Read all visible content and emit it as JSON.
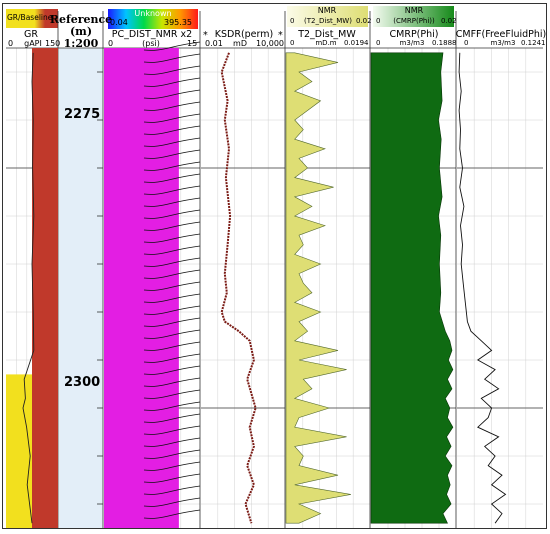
{
  "headers": {
    "gr_baseline_label": "GR/Baseline",
    "gr": {
      "title": "GR",
      "min": "0",
      "unit": "gAPI",
      "max": "150"
    },
    "reference": {
      "title": "Reference",
      "unit": "(m)",
      "scale": "1:200"
    },
    "unknown_bar": {
      "label": "Unknown",
      "min": "0.04",
      "max": "395.35"
    },
    "pc_dist": {
      "title": "PC_DIST_NMR x2",
      "min": "0",
      "unit": "(psi)",
      "max": "15"
    },
    "star_marker": "*",
    "ksdr": {
      "title": "KSDR(perm)",
      "min": "0.01",
      "unit": "mD",
      "max": "10,000"
    },
    "t2": {
      "bar_title": "NMR",
      "bar_label": "(T2_Dist_MW)",
      "bar_min": "0",
      "bar_max": "0.02",
      "title": "T2_Dist_MW",
      "min": "0",
      "unit": "mD.m",
      "max": "0.0194"
    },
    "cmrp": {
      "bar_title": "NMR",
      "bar_label": "(CMRP(Phi))",
      "bar_min": "0",
      "bar_max": "0.02",
      "title": "CMRP(Phi)",
      "min": "0",
      "unit": "m3/m3",
      "max": "0.1888"
    },
    "cmff": {
      "title": "CMFF(FreeFluidPhi)",
      "min": "0",
      "unit": "m3/m3",
      "max": "0.1241"
    }
  },
  "depth_labels": [
    "2275",
    "2300"
  ],
  "colors": {
    "gr_fill": "#c0392b",
    "baseline_fill": "#f2e01e",
    "pc_fill": "#e31ee3",
    "ksdr_line": "#7a1a14",
    "t2_fill": "#dede74",
    "cmrp_fill": "#0f6b12",
    "depth_band": "#e3eef8"
  },
  "chart_data": {
    "type": "well-log",
    "y_axis": {
      "label": "Reference (m)",
      "ylim": [
        2262.5,
        2312.5
      ],
      "ticks": [
        2275,
        2300
      ]
    },
    "tracks": [
      {
        "name": "GR",
        "unit": "gAPI",
        "xlim": [
          0,
          150
        ],
        "depth": [
          2263,
          2266,
          2270,
          2275,
          2280,
          2285,
          2290,
          2294,
          2297,
          2299,
          2300,
          2302,
          2305,
          2308,
          2312
        ],
        "values": [
          35,
          33,
          35,
          34,
          36,
          33,
          35,
          36,
          20,
          22,
          18,
          24,
          30,
          25,
          33
        ]
      },
      {
        "name": "PC_DIST_NMR x2",
        "unit": "psi",
        "xlim": [
          0,
          15
        ],
        "type": "curve-family",
        "curve_count": 40
      },
      {
        "name": "KSDR(perm)",
        "unit": "mD",
        "xlim": [
          0.01,
          10000
        ],
        "scale": "log",
        "depth": [
          2263,
          2265,
          2268,
          2270,
          2273,
          2276,
          2280,
          2283,
          2286,
          2288,
          2290,
          2291,
          2292,
          2293,
          2295,
          2297,
          2300,
          2302,
          2304,
          2306,
          2308,
          2310,
          2312
        ],
        "values": [
          1,
          0.3,
          0.8,
          0.5,
          1,
          0.6,
          1.2,
          0.8,
          0.5,
          0.7,
          0.3,
          0.5,
          5,
          30,
          60,
          20,
          80,
          30,
          60,
          20,
          60,
          15,
          40
        ]
      },
      {
        "name": "T2_Dist_MW",
        "unit": "mD.m",
        "xlim": [
          0,
          0.0194
        ],
        "depth": [
          2263,
          2264,
          2265,
          2266,
          2267,
          2268,
          2270,
          2271,
          2272,
          2273,
          2274,
          2275,
          2276,
          2277,
          2278,
          2279,
          2280,
          2281,
          2282,
          2283,
          2284,
          2285,
          2286,
          2287,
          2288,
          2289,
          2290,
          2291,
          2292,
          2293,
          2294,
          2295,
          2296,
          2297,
          2298,
          2299,
          2300,
          2301,
          2302,
          2303,
          2304,
          2305,
          2306,
          2307,
          2308,
          2309,
          2310,
          2311,
          2312
        ],
        "values": [
          0.002,
          0.012,
          0.003,
          0.006,
          0.002,
          0.008,
          0.002,
          0.004,
          0.002,
          0.009,
          0.003,
          0.005,
          0.002,
          0.011,
          0.002,
          0.006,
          0.002,
          0.009,
          0.003,
          0.004,
          0.002,
          0.008,
          0.003,
          0.004,
          0.006,
          0.002,
          0.008,
          0.003,
          0.005,
          0.002,
          0.012,
          0.003,
          0.014,
          0.004,
          0.006,
          0.002,
          0.01,
          0.003,
          0.002,
          0.014,
          0.002,
          0.004,
          0.003,
          0.012,
          0.002,
          0.015,
          0.003,
          0.008,
          0.003
        ]
      },
      {
        "name": "CMRP(Phi)",
        "unit": "m3/m3",
        "xlim": [
          0,
          0.1888
        ],
        "depth": [
          2263,
          2265,
          2268,
          2270,
          2272,
          2275,
          2278,
          2280,
          2282,
          2285,
          2288,
          2290,
          2292,
          2293,
          2294,
          2295,
          2296,
          2297,
          2298,
          2299,
          2300,
          2301,
          2302,
          2303,
          2304,
          2305,
          2306,
          2307,
          2308,
          2309,
          2310,
          2311,
          2312
        ],
        "values": [
          0.16,
          0.155,
          0.158,
          0.15,
          0.156,
          0.152,
          0.158,
          0.15,
          0.155,
          0.152,
          0.155,
          0.152,
          0.165,
          0.175,
          0.18,
          0.172,
          0.182,
          0.17,
          0.18,
          0.165,
          0.175,
          0.17,
          0.182,
          0.168,
          0.178,
          0.165,
          0.18,
          0.17,
          0.176,
          0.168,
          0.178,
          0.16,
          0.17
        ]
      },
      {
        "name": "CMFF(FreeFluidPhi)",
        "unit": "m3/m3",
        "xlim": [
          0,
          0.1241
        ],
        "depth": [
          2263,
          2265,
          2267,
          2269,
          2271,
          2273,
          2275,
          2277,
          2279,
          2281,
          2283,
          2285,
          2287,
          2289,
          2291,
          2292,
          2293,
          2294,
          2295,
          2296,
          2297,
          2298,
          2299,
          2300,
          2301,
          2302,
          2303,
          2304,
          2305,
          2306,
          2307,
          2308,
          2309,
          2310,
          2311,
          2312
        ],
        "values": [
          0.004,
          0.003,
          0.006,
          0.003,
          0.005,
          0.004,
          0.008,
          0.004,
          0.01,
          0.005,
          0.008,
          0.006,
          0.009,
          0.012,
          0.015,
          0.02,
          0.035,
          0.05,
          0.03,
          0.055,
          0.04,
          0.06,
          0.035,
          0.05,
          0.045,
          0.03,
          0.06,
          0.04,
          0.055,
          0.045,
          0.065,
          0.05,
          0.07,
          0.05,
          0.065,
          0.055
        ]
      }
    ]
  }
}
